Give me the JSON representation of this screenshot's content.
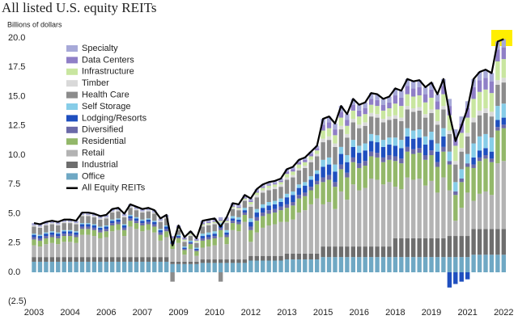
{
  "chart_data": {
    "type": "stacked-bar-line",
    "title": "All listed U.S. equity REITs",
    "subtitle": "Billions of dollars",
    "categories": [
      "2003",
      null,
      null,
      null,
      null,
      null,
      "2004",
      null,
      null,
      null,
      null,
      null,
      "2006",
      null,
      null,
      null,
      null,
      null,
      "2007",
      null,
      null,
      null,
      null,
      null,
      "2009",
      null,
      null,
      null,
      null,
      null,
      "2010",
      null,
      null,
      null,
      null,
      null,
      "2012",
      null,
      null,
      null,
      null,
      null,
      "2013",
      null,
      null,
      null,
      null,
      null,
      "2015",
      null,
      null,
      null,
      null,
      null,
      "2016",
      null,
      null,
      null,
      null,
      null,
      "2018",
      null,
      null,
      null,
      null,
      null,
      "2019",
      null,
      null,
      null,
      null,
      null,
      "2021",
      null,
      null,
      null,
      null,
      null,
      "2022"
    ],
    "ylim": [
      -2.5,
      20.5
    ],
    "yticks": [
      {
        "value": -2.5,
        "label": "(2.5)"
      },
      {
        "value": 0,
        "label": "0.0"
      },
      2.5,
      {
        "value": 5,
        "label": "5.0"
      },
      7.5,
      {
        "value": 10,
        "label": "10.0"
      },
      12.5,
      {
        "value": 15,
        "label": "15.0"
      },
      17.5,
      {
        "value": 20,
        "label": "20.0"
      }
    ],
    "series": [
      {
        "name": "Office",
        "color": "#6fa8c4",
        "values": [
          0.9,
          0.9,
          0.9,
          0.9,
          0.9,
          0.9,
          0.9,
          0.9,
          0.9,
          0.9,
          0.9,
          0.9,
          0.9,
          0.9,
          0.9,
          0.9,
          0.9,
          0.9,
          0.9,
          0.9,
          0.9,
          0.9,
          0.9,
          0.7,
          0.7,
          0.7,
          0.7,
          0.7,
          0.8,
          0.8,
          0.8,
          0.8,
          0.8,
          0.8,
          0.8,
          0.8,
          1.0,
          1.0,
          1.0,
          1.0,
          1.0,
          1.0,
          1.1,
          1.1,
          1.1,
          1.1,
          1.1,
          1.1,
          1.3,
          1.3,
          1.3,
          1.3,
          1.3,
          1.3,
          1.3,
          1.3,
          1.3,
          1.3,
          1.3,
          1.3,
          1.3,
          1.3,
          1.3,
          1.3,
          1.3,
          1.3,
          1.3,
          1.3,
          1.3,
          1.3,
          1.3,
          1.3,
          1.3,
          1.5,
          1.5,
          1.5,
          1.5,
          1.5,
          1.5
        ]
      },
      {
        "name": "Industrial",
        "color": "#6e6e6e",
        "values": [
          0.4,
          0.4,
          0.4,
          0.4,
          0.4,
          0.4,
          0.4,
          0.4,
          0.4,
          0.4,
          0.4,
          0.4,
          0.4,
          0.4,
          0.4,
          0.4,
          0.4,
          0.4,
          0.4,
          0.4,
          0.4,
          0.4,
          0.4,
          0.2,
          0.2,
          0.2,
          0.2,
          0.2,
          0.3,
          0.3,
          0.3,
          0.3,
          0.3,
          0.3,
          0.3,
          0.3,
          0.4,
          0.4,
          0.4,
          0.4,
          0.4,
          0.4,
          0.5,
          0.5,
          0.5,
          0.5,
          0.5,
          0.5,
          0.9,
          0.9,
          0.9,
          0.9,
          0.9,
          0.9,
          0.9,
          0.9,
          0.9,
          0.9,
          0.9,
          0.9,
          1.6,
          1.6,
          1.6,
          1.6,
          1.6,
          1.6,
          1.6,
          1.6,
          1.6,
          1.8,
          1.8,
          1.8,
          1.8,
          2.2,
          2.2,
          2.2,
          2.2,
          2.2,
          2.2
        ]
      },
      {
        "name": "Retail",
        "color": "#b3b3b3",
        "values": [
          1.0,
          0.9,
          1.1,
          1.2,
          1.1,
          1.3,
          1.3,
          1.2,
          1.9,
          1.9,
          1.8,
          1.6,
          1.7,
          2.2,
          2.3,
          1.8,
          2.6,
          2.4,
          2.2,
          2.3,
          2.1,
          1.4,
          1.7,
          1.1,
          1.6,
          0.6,
          1.1,
          0.5,
          1.0,
          1.1,
          1.2,
          1.9,
          1.3,
          2.5,
          2.4,
          3.2,
          1.2,
          2.0,
          2.4,
          2.6,
          2.7,
          2.9,
          2.7,
          2.9,
          3.5,
          3.7,
          4.2,
          4.7,
          3.6,
          3.8,
          3.2,
          4.7,
          4.0,
          5.3,
          4.8,
          5.0,
          5.8,
          5.7,
          5.3,
          5.5,
          4.4,
          4.2,
          5.2,
          5.0,
          5.1,
          4.5,
          4.9,
          3.9,
          5.2,
          3.9,
          1.3,
          2.4,
          3.7,
          2.4,
          3.0,
          3.2,
          2.9,
          5.6,
          5.8
        ]
      },
      {
        "name": "Residential",
        "color": "#93b86a",
        "values": [
          0.5,
          0.5,
          0.5,
          0.5,
          0.5,
          0.5,
          0.5,
          0.5,
          0.5,
          0.5,
          0.5,
          0.5,
          0.5,
          0.5,
          0.5,
          0.5,
          0.5,
          0.5,
          0.5,
          0.5,
          0.5,
          0.5,
          0.5,
          0.4,
          0.4,
          0.4,
          0.4,
          0.4,
          0.6,
          0.6,
          0.6,
          0.6,
          0.6,
          0.6,
          0.6,
          0.6,
          1.0,
          1.0,
          1.0,
          1.0,
          1.0,
          1.0,
          1.2,
          1.2,
          1.2,
          1.2,
          1.2,
          1.2,
          1.9,
          1.9,
          1.9,
          1.9,
          1.9,
          1.9,
          1.9,
          1.9,
          1.9,
          1.9,
          1.9,
          1.9,
          2.2,
          2.2,
          2.2,
          2.2,
          2.2,
          2.2,
          2.2,
          2.2,
          2.2,
          2.2,
          2.2,
          2.2,
          2.2,
          2.8,
          2.8,
          2.8,
          2.8,
          2.8,
          2.8
        ]
      },
      {
        "name": "Diversified",
        "color": "#6b6aa8",
        "values": [
          0.2,
          0.2,
          0.2,
          0.2,
          0.2,
          0.2,
          0.2,
          0.2,
          0.2,
          0.2,
          0.2,
          0.2,
          0.2,
          0.2,
          0.2,
          0.2,
          0.2,
          0.2,
          0.2,
          0.2,
          0.2,
          0.2,
          0.2,
          0.1,
          0.1,
          0.1,
          0.1,
          0.1,
          0.2,
          0.2,
          0.2,
          0.2,
          0.2,
          0.2,
          0.2,
          0.2,
          0.3,
          0.3,
          0.3,
          0.3,
          0.3,
          0.3,
          0.3,
          0.3,
          0.3,
          0.3,
          0.3,
          0.3,
          0.4,
          0.4,
          0.4,
          0.4,
          0.4,
          0.4,
          0.4,
          0.4,
          0.4,
          0.4,
          0.4,
          0.4,
          0.4,
          0.4,
          0.4,
          0.4,
          0.4,
          0.4,
          0.4,
          0.4,
          0.4,
          0.3,
          0.3,
          0.3,
          0.3,
          0.3,
          0.3,
          0.3,
          0.3,
          0.3,
          0.3
        ]
      },
      {
        "name": "Lodging/Resorts",
        "color": "#1f4fbf",
        "values": [
          0.2,
          0.2,
          0.2,
          0.2,
          0.2,
          0.2,
          0.2,
          0.2,
          0.2,
          0.2,
          0.2,
          0.2,
          0.2,
          0.2,
          0.2,
          0.2,
          0.2,
          0.2,
          0.2,
          0.2,
          0.2,
          0.2,
          0.2,
          0.1,
          0.1,
          0.1,
          0.1,
          0.1,
          0.2,
          0.2,
          0.2,
          0.2,
          0.2,
          0.2,
          0.2,
          0.2,
          0.4,
          0.4,
          0.4,
          0.4,
          0.4,
          0.4,
          0.6,
          0.6,
          0.6,
          0.6,
          0.6,
          0.6,
          0.9,
          0.9,
          0.9,
          0.9,
          0.9,
          0.9,
          0.9,
          0.9,
          0.9,
          0.9,
          0.9,
          0.9,
          0.9,
          0.9,
          0.9,
          0.9,
          0.9,
          0.9,
          0.9,
          0.9,
          0.9,
          -1.3,
          -1.0,
          -0.8,
          -0.6,
          0.6,
          0.6,
          0.6,
          0.6,
          0.6,
          0.6
        ]
      },
      {
        "name": "Self Storage",
        "color": "#87cde8",
        "values": [
          0.1,
          0.1,
          0.1,
          0.1,
          0.1,
          0.1,
          0.1,
          0.1,
          0.1,
          0.1,
          0.1,
          0.1,
          0.1,
          0.1,
          0.1,
          0.1,
          0.1,
          0.1,
          0.1,
          0.1,
          0.1,
          0.1,
          0.1,
          0.1,
          0.1,
          0.1,
          0.1,
          0.1,
          0.2,
          0.2,
          0.2,
          0.2,
          0.2,
          0.2,
          0.2,
          0.2,
          0.3,
          0.3,
          0.3,
          0.3,
          0.3,
          0.3,
          0.3,
          0.3,
          0.3,
          0.3,
          0.3,
          0.3,
          0.6,
          0.6,
          0.6,
          0.6,
          0.6,
          0.6,
          0.6,
          0.6,
          0.6,
          0.6,
          0.6,
          0.6,
          0.7,
          0.7,
          0.7,
          0.7,
          0.7,
          0.7,
          0.7,
          0.7,
          0.7,
          0.8,
          0.8,
          0.8,
          0.8,
          1.2,
          1.2,
          1.2,
          1.2,
          1.2,
          1.2
        ]
      },
      {
        "name": "Health Care",
        "color": "#8c8c8c",
        "values": [
          0.6,
          0.6,
          0.6,
          0.6,
          0.6,
          0.6,
          0.6,
          0.6,
          0.6,
          0.6,
          0.6,
          0.6,
          0.6,
          0.6,
          0.6,
          0.6,
          0.6,
          0.6,
          0.6,
          0.6,
          0.6,
          0.6,
          0.6,
          -0.8,
          0.4,
          0.4,
          0.4,
          0.4,
          0.6,
          0.6,
          0.6,
          -0.8,
          0.6,
          0.6,
          0.6,
          0.6,
          1.0,
          1.0,
          1.0,
          1.0,
          1.0,
          1.0,
          1.2,
          1.2,
          1.2,
          1.2,
          1.2,
          1.2,
          1.5,
          1.5,
          1.5,
          1.5,
          1.5,
          1.5,
          1.5,
          1.5,
          1.5,
          1.5,
          1.5,
          1.5,
          1.6,
          1.6,
          1.6,
          1.6,
          1.6,
          1.6,
          1.6,
          1.6,
          1.6,
          1.5,
          1.5,
          1.5,
          1.5,
          1.8,
          1.8,
          1.8,
          1.8,
          1.8,
          1.8
        ]
      },
      {
        "name": "Timber",
        "color": "#d9d9d9",
        "values": [
          0.1,
          0.1,
          0.1,
          0.1,
          0.1,
          0.1,
          0.1,
          0.1,
          0.1,
          0.1,
          0.1,
          0.1,
          0.1,
          0.1,
          0.1,
          0.1,
          0.1,
          0.1,
          0.1,
          0.1,
          0.1,
          0.1,
          0.1,
          0.1,
          0.1,
          0.1,
          0.1,
          0.1,
          0.1,
          0.1,
          0.1,
          0.1,
          0.1,
          0.1,
          0.1,
          0.1,
          0.2,
          0.2,
          0.2,
          0.2,
          0.2,
          0.2,
          0.2,
          0.2,
          0.2,
          0.2,
          0.2,
          0.2,
          0.3,
          0.3,
          0.3,
          0.3,
          0.3,
          0.3,
          0.3,
          0.3,
          0.3,
          0.3,
          0.3,
          0.3,
          0.3,
          0.3,
          0.3,
          0.3,
          0.3,
          0.3,
          0.3,
          0.3,
          0.3,
          0.3,
          0.3,
          0.3,
          0.3,
          0.4,
          0.4,
          0.4,
          0.4,
          0.4,
          0.4
        ]
      },
      {
        "name": "Infrastructure",
        "color": "#c9e6a0",
        "values": [
          0,
          0,
          0,
          0,
          0,
          0,
          0,
          0,
          0,
          0,
          0,
          0,
          0,
          0,
          0,
          0,
          0,
          0,
          0,
          0,
          0,
          0,
          0,
          0.1,
          0.1,
          0.1,
          0.1,
          0.1,
          0.1,
          0.1,
          0.1,
          0.1,
          0.1,
          0.1,
          0.1,
          0.1,
          0.2,
          0.2,
          0.2,
          0.2,
          0.2,
          0.2,
          0.3,
          0.3,
          0.3,
          0.3,
          0.3,
          0.3,
          0.7,
          0.7,
          0.7,
          0.7,
          0.7,
          0.7,
          0.7,
          0.7,
          0.7,
          0.7,
          0.7,
          0.7,
          1.0,
          1.0,
          1.0,
          1.0,
          1.0,
          1.0,
          1.0,
          1.0,
          1.0,
          1.3,
          1.3,
          1.3,
          1.3,
          1.6,
          1.6,
          1.6,
          1.6,
          1.6,
          1.6
        ]
      },
      {
        "name": "Data Centers",
        "color": "#8f7fc7",
        "values": [
          0,
          0,
          0,
          0,
          0,
          0,
          0,
          0,
          0,
          0,
          0,
          0,
          0,
          0,
          0,
          0,
          0,
          0,
          0,
          0,
          0,
          0,
          0,
          0.1,
          0.1,
          0.1,
          0.1,
          0.1,
          0.1,
          0.1,
          0.1,
          0.1,
          0.1,
          0.1,
          0.1,
          0.1,
          0.1,
          0.1,
          0.1,
          0.1,
          0.1,
          0.1,
          0.2,
          0.2,
          0.2,
          0.2,
          0.2,
          0.2,
          0.5,
          0.5,
          0.5,
          0.5,
          0.5,
          0.5,
          0.5,
          0.5,
          0.5,
          0.5,
          0.5,
          0.5,
          0.7,
          0.7,
          0.7,
          0.7,
          0.7,
          0.7,
          0.7,
          0.7,
          0.7,
          0.8,
          0.8,
          0.8,
          0.8,
          1.0,
          1.0,
          1.0,
          1.0,
          1.0,
          1.0
        ]
      },
      {
        "name": "Specialty",
        "color": "#a7a9d8",
        "values": [
          0.2,
          0.2,
          0.2,
          0.2,
          0.2,
          0.2,
          0.2,
          0.2,
          0.2,
          0.2,
          0.2,
          0.2,
          0.2,
          0.2,
          0.2,
          0.2,
          0.2,
          0.2,
          0.2,
          0.2,
          0.2,
          0.2,
          0.2,
          0.1,
          0.1,
          0.1,
          0.1,
          0.1,
          0.2,
          0.2,
          0.2,
          0.2,
          0.2,
          0.2,
          0.2,
          0.2,
          0.2,
          0.2,
          0.2,
          0.2,
          0.2,
          0.2,
          0.2,
          0.2,
          0.2,
          0.2,
          0.2,
          0.2,
          0.5,
          0.5,
          0.5,
          0.5,
          0.5,
          0.5,
          0.5,
          0.5,
          0.5,
          0.5,
          0.5,
          0.5,
          0.6,
          0.6,
          0.6,
          0.6,
          0.6,
          0.6,
          0.6,
          0.6,
          0.6,
          0.6,
          0.6,
          0.6,
          0.6,
          0.7,
          0.7,
          0.7,
          0.7,
          0.7,
          0.7
        ]
      }
    ],
    "line": {
      "name": "All Equity REITs",
      "color": "#000000",
      "values": [
        4.2,
        4.1,
        4.3,
        4.4,
        4.3,
        4.5,
        4.5,
        4.4,
        5.1,
        5.1,
        5.0,
        4.8,
        4.9,
        5.4,
        5.5,
        5.0,
        5.8,
        5.6,
        5.4,
        5.5,
        5.3,
        4.6,
        4.9,
        2.3,
        4.0,
        3.0,
        3.5,
        2.9,
        4.4,
        4.5,
        4.6,
        3.9,
        4.7,
        5.9,
        5.8,
        6.6,
        6.3,
        7.1,
        7.5,
        7.7,
        7.8,
        8.0,
        8.8,
        9.0,
        9.6,
        9.8,
        10.3,
        10.8,
        13.1,
        13.3,
        12.7,
        14.2,
        13.5,
        14.8,
        14.3,
        14.5,
        15.3,
        15.2,
        14.8,
        15.0,
        15.7,
        15.5,
        16.5,
        16.3,
        16.4,
        15.8,
        16.2,
        15.2,
        16.5,
        13.5,
        11.2,
        12.5,
        14.0,
        16.5,
        17.1,
        17.3,
        17.0,
        19.7,
        19.9
      ]
    }
  }
}
